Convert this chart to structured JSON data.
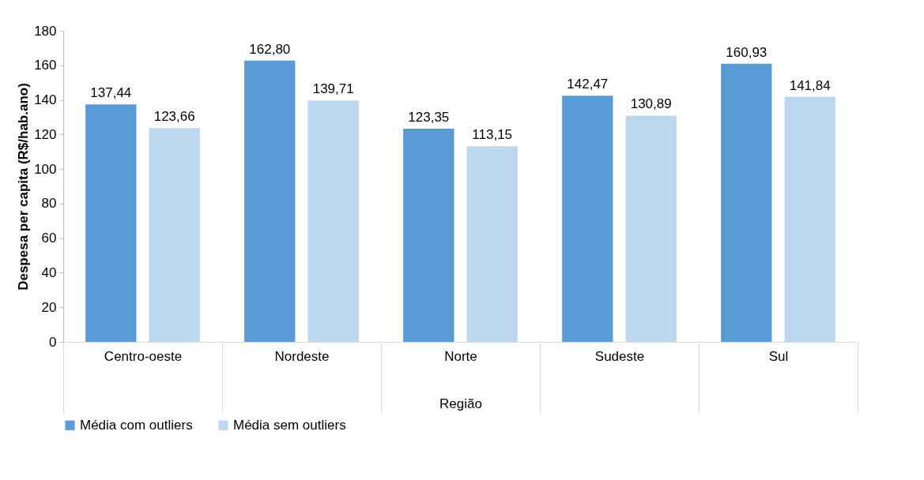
{
  "chart_data": {
    "type": "bar",
    "xlabel": "Região",
    "ylabel": "Despesa per capita (R$/hab.ano)",
    "categories": [
      "Centro-oeste",
      "Nordeste",
      "Norte",
      "Sudeste",
      "Sul"
    ],
    "series": [
      {
        "name": "Média com outliers",
        "color": "#5b9bd5",
        "values": [
          137.44,
          162.8,
          123.35,
          142.47,
          160.93
        ],
        "value_labels": [
          "137,44",
          "162,80",
          "123,35",
          "142,47",
          "160,93"
        ]
      },
      {
        "name": "Média sem outliers",
        "color": "#bdd7ee",
        "values": [
          123.66,
          139.71,
          113.15,
          130.89,
          141.84
        ],
        "value_labels": [
          "123,66",
          "139,71",
          "113,15",
          "130,89",
          "141,84"
        ]
      }
    ],
    "ylim": [
      0,
      180
    ],
    "yticks": [
      0,
      20,
      40,
      60,
      80,
      100,
      120,
      140,
      160,
      180
    ],
    "grid": false,
    "legend": "bottom"
  }
}
